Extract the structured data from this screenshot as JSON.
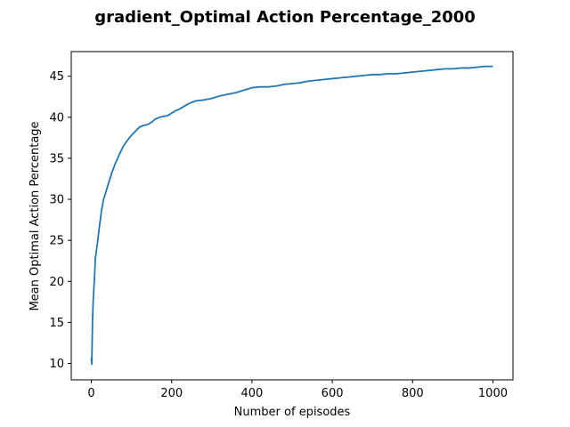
{
  "chart_data": {
    "type": "line",
    "title": "gradient_Optimal Action Percentage_2000",
    "xlabel": "Number of episodes",
    "ylabel": "Mean Optimal Action Percentage",
    "xlim": [
      -50,
      1050
    ],
    "ylim": [
      8.0,
      48.0
    ],
    "xticks": [
      0,
      200,
      400,
      600,
      800,
      1000
    ],
    "yticks": [
      10,
      15,
      20,
      25,
      30,
      35,
      40,
      45
    ],
    "grid": false,
    "series": [
      {
        "color": "#1f77b4",
        "x": [
          0,
          1,
          2,
          3,
          5,
          8,
          10,
          15,
          20,
          25,
          30,
          40,
          50,
          60,
          70,
          80,
          90,
          100,
          110,
          120,
          130,
          140,
          150,
          160,
          170,
          180,
          190,
          200,
          210,
          220,
          230,
          240,
          250,
          260,
          280,
          300,
          320,
          340,
          360,
          380,
          400,
          420,
          440,
          460,
          480,
          500,
          520,
          540,
          560,
          580,
          600,
          620,
          640,
          660,
          680,
          700,
          720,
          740,
          760,
          780,
          800,
          820,
          840,
          860,
          880,
          900,
          920,
          940,
          960,
          980,
          1000
        ],
        "y": [
          10.7,
          9.9,
          12.5,
          15.3,
          18.0,
          20.5,
          22.8,
          24.6,
          26.6,
          28.5,
          29.9,
          31.5,
          33.1,
          34.4,
          35.5,
          36.5,
          37.2,
          37.8,
          38.3,
          38.8,
          39.0,
          39.1,
          39.4,
          39.8,
          40.0,
          40.1,
          40.2,
          40.5,
          40.8,
          41.0,
          41.3,
          41.6,
          41.8,
          42.0,
          42.1,
          42.3,
          42.6,
          42.8,
          43.0,
          43.3,
          43.6,
          43.7,
          43.7,
          43.8,
          44.0,
          44.1,
          44.2,
          44.4,
          44.5,
          44.6,
          44.7,
          44.8,
          44.9,
          45.0,
          45.1,
          45.2,
          45.2,
          45.3,
          45.3,
          45.4,
          45.5,
          45.6,
          45.7,
          45.8,
          45.9,
          45.9,
          46.0,
          46.0,
          46.1,
          46.2,
          46.2
        ]
      }
    ]
  }
}
